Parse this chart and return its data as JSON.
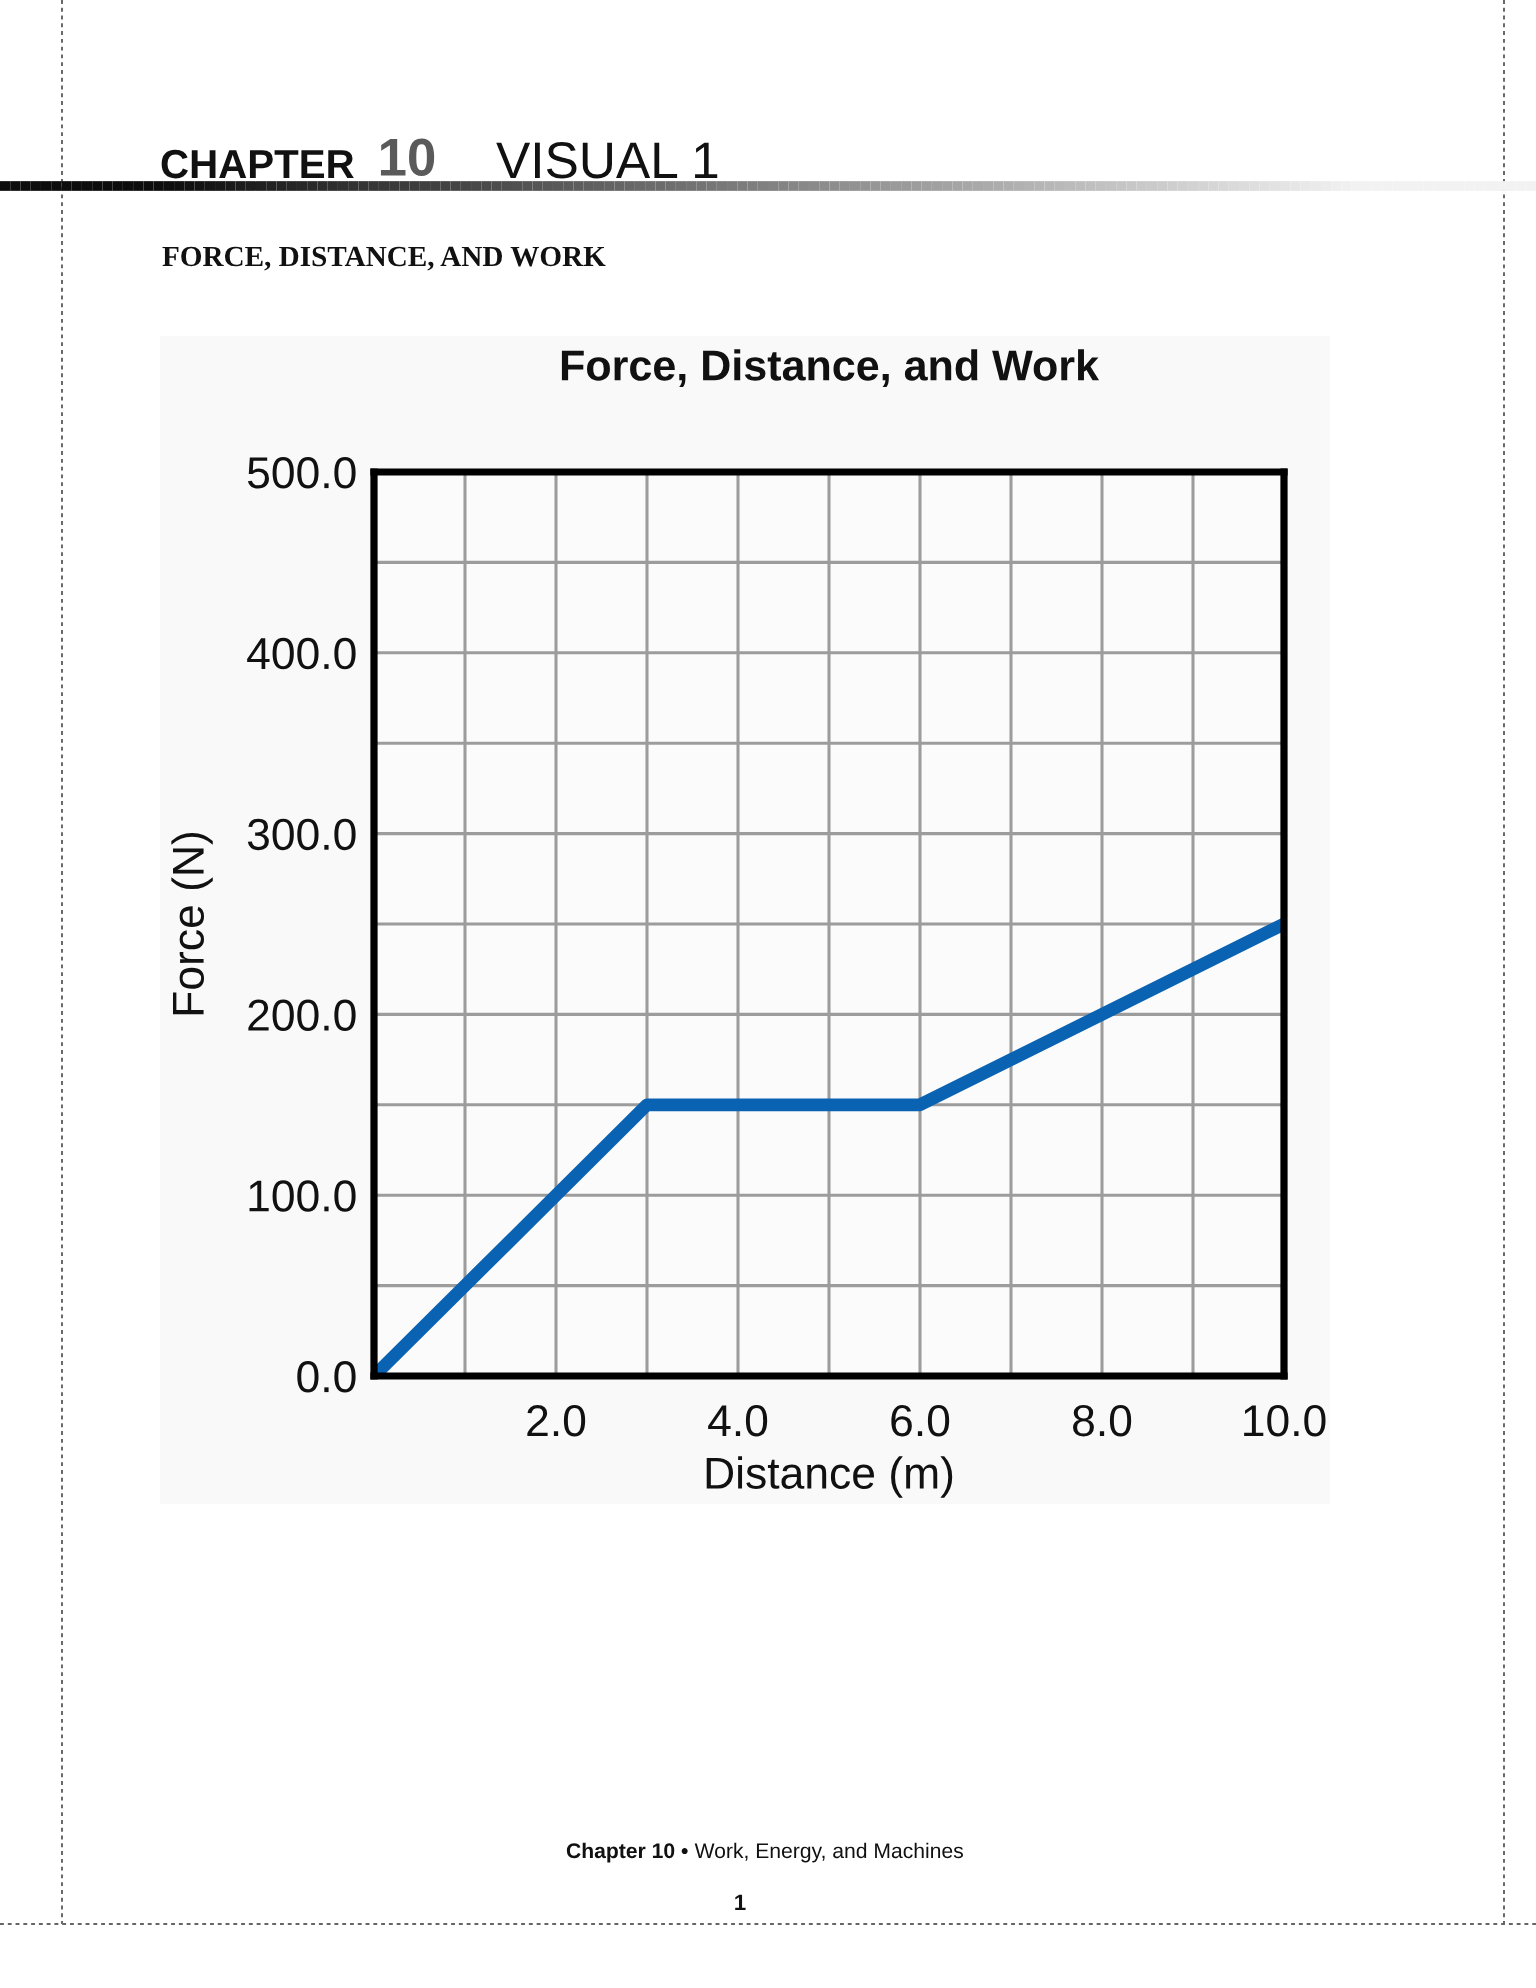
{
  "chart_data": {
    "type": "line",
    "title": "Force, Distance, and Work",
    "xlabel": "Distance (m)",
    "ylabel": "Force (N)",
    "annotations": [
      "CHAPTER",
      "10",
      "VISUAL 1",
      "FORCE, DISTANCE, AND WORK",
      "Chapter 10 •",
      "Work, Energy, and Machines",
      "1"
    ],
    "x": [
      0,
      3,
      6,
      10
    ],
    "series": [
      {
        "color": "#0a62b3",
        "values": [
          0,
          150,
          150,
          250
        ]
      }
    ],
    "xlim": [
      0,
      10
    ],
    "ylim": [
      0,
      500
    ],
    "xticks": [
      {
        "value": 1,
        "label": null
      },
      {
        "value": 2,
        "label": "2.0"
      },
      {
        "value": 3,
        "label": null
      },
      {
        "value": 4,
        "label": "4.0"
      },
      {
        "value": 5,
        "label": null
      },
      {
        "value": 6,
        "label": "6.0"
      },
      {
        "value": 7,
        "label": null
      },
      {
        "value": 8,
        "label": "8.0"
      },
      {
        "value": 9,
        "label": null
      },
      {
        "value": 10,
        "label": "10.0"
      }
    ],
    "yticks": [
      {
        "value": 0,
        "label": "0.0"
      },
      {
        "value": 50,
        "label": null
      },
      {
        "value": 100,
        "label": "100.0"
      },
      {
        "value": 150,
        "label": null
      },
      {
        "value": 200,
        "label": "200.0"
      },
      {
        "value": 250,
        "label": null
      },
      {
        "value": 300,
        "label": "300.0"
      },
      {
        "value": 350,
        "label": null
      },
      {
        "value": 400,
        "label": "400.0"
      },
      {
        "value": 450,
        "label": null
      },
      {
        "value": 500,
        "label": "500.0"
      }
    ],
    "grid": true,
    "line_style": "solid"
  }
}
